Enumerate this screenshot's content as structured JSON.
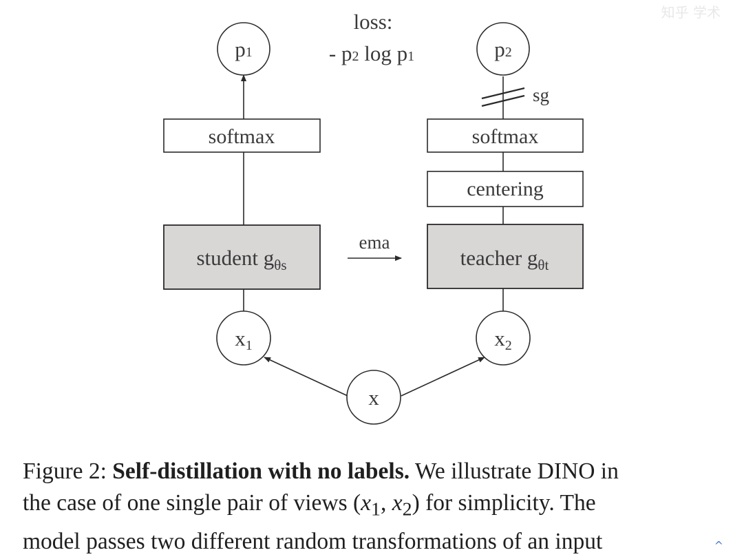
{
  "diagram": {
    "loss_label": "loss:",
    "loss_expr": {
      "minus": "- p",
      "sub1": "2",
      "mid": " log p",
      "sub2": "1"
    },
    "p1": {
      "base": "p",
      "sub": "1"
    },
    "p2": {
      "base": "p",
      "sub": "2"
    },
    "x1": {
      "base": "x",
      "sub": "1"
    },
    "x2": {
      "base": "x",
      "sub": "2"
    },
    "x": "x",
    "student_softmax": "softmax",
    "teacher_softmax": "softmax",
    "centering": "centering",
    "student": {
      "text": "student g",
      "sub": "θs"
    },
    "teacher": {
      "text": "teacher g",
      "sub": "θt"
    },
    "ema_label": "ema",
    "sg_label": "sg"
  },
  "caption": {
    "figure_label": "Figure 2: ",
    "title": "Self-distillation with no labels.",
    "line1_rest": " We illustrate DINO in",
    "line2_a": "the case of one single pair of views (",
    "x1": "x",
    "x1_sub": "1",
    "comma": ", ",
    "x2": "x",
    "x2_sub": "2",
    "line2_b": ") for simplicity. The",
    "line3": "model passes two different random transformations of an input"
  },
  "overlay": {
    "watermark": "知乎 学术",
    "scroll_up_icon": "^"
  }
}
